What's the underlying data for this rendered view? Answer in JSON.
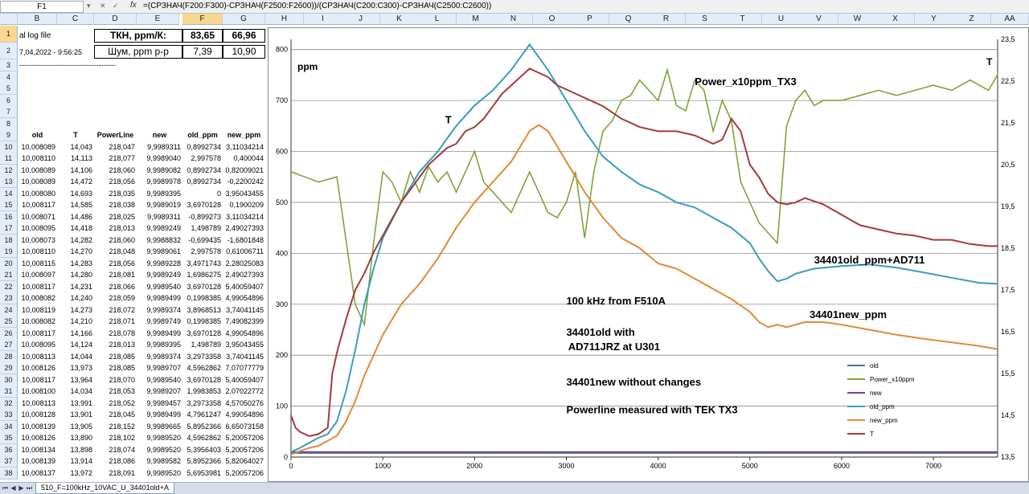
{
  "formula_bar": {
    "name_box": "F1",
    "fx": "fx",
    "formula": "=(СРЗНАЧ(F200:F300)-СРЗНАЧ(F2500:F2600))/(СРЗНАЧ(C200:C300)-СРЗНАЧ(C2500:C2600))"
  },
  "columns": [
    "B",
    "C",
    "D",
    "E",
    "F",
    "G",
    "H",
    "I",
    "J",
    "K",
    "L",
    "M",
    "N",
    "O",
    "P",
    "Q",
    "R",
    "S",
    "T",
    "U",
    "V",
    "W",
    "X",
    "Y",
    "Z",
    "AA"
  ],
  "rows": [
    1,
    2,
    3,
    4,
    5,
    6,
    7,
    8,
    9,
    10,
    11,
    12,
    13,
    14,
    15,
    16,
    17,
    18,
    19,
    20,
    21,
    22,
    23,
    24,
    25,
    26,
    27,
    28,
    29,
    30,
    31,
    32,
    33,
    34,
    35,
    36,
    37,
    38
  ],
  "top_cells": {
    "log_label": "al log file",
    "datetime": "7,04,2022 - 9:56:25",
    "dashes": "----------------------------------------",
    "tkn_label": "ТКН, ppm/К:",
    "tkn_old": "83,65",
    "tkn_new": "66,96",
    "noise_label": "Шум, ppm p-p",
    "noise_old": "7,39",
    "noise_new": "10,90"
  },
  "table": {
    "headers": [
      "old",
      "T",
      "PowerLine",
      "new",
      "old_ppm",
      "new_ppm"
    ],
    "rows": [
      [
        "10,008089",
        "14,043",
        "218,047",
        "9,9989311",
        "0,8992734",
        "3,11034214"
      ],
      [
        "10,008110",
        "14,113",
        "218,077",
        "9,9989040",
        "2,997578",
        "0,400044"
      ],
      [
        "10,008089",
        "14,106",
        "218,060",
        "9,9989082",
        "0,8992734",
        "0,82009021"
      ],
      [
        "10,008089",
        "14,472",
        "218,056",
        "9,9989978",
        "0,8992734",
        "-0,2200242"
      ],
      [
        "10,008080",
        "14,693",
        "218,035",
        "9,9989395",
        "0",
        "3,95043455"
      ],
      [
        "10,008117",
        "14,585",
        "218,038",
        "9,9989019",
        "3,6970128",
        "0,1900209"
      ],
      [
        "10,008071",
        "14,486",
        "218,025",
        "9,9989311",
        "-0,899273",
        "3,11034214"
      ],
      [
        "10,008095",
        "14,418",
        "218,013",
        "9,9989249",
        "1,498789",
        "2,49027393"
      ],
      [
        "10,008073",
        "14,282",
        "218,060",
        "9,9988832",
        "-0,699435",
        "-1,6801848"
      ],
      [
        "10,008110",
        "14,270",
        "218,048",
        "9,9989061",
        "2,997578",
        "0,61006711"
      ],
      [
        "10,008115",
        "14,283",
        "218,056",
        "9,9989228",
        "3,4971743",
        "2,28025083"
      ],
      [
        "10,008097",
        "14,280",
        "218,081",
        "9,9989249",
        "1,6986275",
        "2,49027393"
      ],
      [
        "10,008117",
        "14,231",
        "218,066",
        "9,9989540",
        "3,6970128",
        "5,40059407"
      ],
      [
        "10,008082",
        "14,240",
        "218,059",
        "9,9989499",
        "0,1998385",
        "4,99054896"
      ],
      [
        "10,008119",
        "14,273",
        "218,072",
        "9,9989374",
        "3,8968513",
        "3,74041145"
      ],
      [
        "10,008082",
        "14,210",
        "218,071",
        "9,9989749",
        "0,1998385",
        "7,49082399"
      ],
      [
        "10,008117",
        "14,166",
        "218,078",
        "9,9989499",
        "3,6970128",
        "4,99054896"
      ],
      [
        "10,008095",
        "14,124",
        "218,013",
        "9,9989395",
        "1,498789",
        "3,95043455"
      ],
      [
        "10,008113",
        "14,044",
        "218,085",
        "9,9989374",
        "3,2973358",
        "3,74041145"
      ],
      [
        "10,008126",
        "13,973",
        "218,085",
        "9,9989707",
        "4,5962862",
        "7,07077779"
      ],
      [
        "10,008117",
        "13,964",
        "218,070",
        "9,9989540",
        "3,6970128",
        "5,40059407"
      ],
      [
        "10,008100",
        "14,034",
        "218,053",
        "9,9989207",
        "1,9983853",
        "2,07022772"
      ],
      [
        "10,008113",
        "13,991",
        "218,052",
        "9,9989457",
        "3,2973358",
        "4,57050276"
      ],
      [
        "10,008128",
        "13,901",
        "218,045",
        "9,9989499",
        "4,7961247",
        "4,99054896"
      ],
      [
        "10,008139",
        "13,905",
        "218,152",
        "9,9989665",
        "5,8952366",
        "6,65073158"
      ],
      [
        "10,008126",
        "13,890",
        "218,102",
        "9,9989520",
        "4,5962862",
        "5,20057206"
      ],
      [
        "10,008134",
        "13,898",
        "218,074",
        "9,9989520",
        "5,3956403",
        "5,20057206"
      ],
      [
        "10,008139",
        "13,914",
        "218,086",
        "9,9989582",
        "5,8952366",
        "5,82064027"
      ],
      [
        "10,008137",
        "13,972",
        "218,091",
        "9,9989520",
        "5,6953981",
        "5,20057206"
      ]
    ],
    "partial_row": [
      "10,008113",
      "14,013",
      "218,086",
      "9,9989374",
      "3,2973358",
      "6,03066337"
    ]
  },
  "chart_data": {
    "type": "line",
    "x_range": [
      0,
      7700
    ],
    "y_left_range": [
      0,
      820
    ],
    "y_right_range": [
      13.5,
      23.5
    ],
    "x_ticks": [
      0,
      1000,
      2000,
      3000,
      4000,
      5000,
      6000,
      7000
    ],
    "x_tick_labels": [
      "0",
      "1000",
      "2000",
      "3000",
      "4000",
      "5000",
      "6000",
      "7000"
    ],
    "y_left_ticks": [
      0,
      100,
      200,
      300,
      400,
      500,
      600,
      700,
      800
    ],
    "y_left_tick_labels": [
      "0",
      "100",
      "200",
      "300",
      "400",
      "500",
      "600",
      "700",
      "800"
    ],
    "y_right_ticks": [
      13.5,
      14.5,
      15.5,
      16.5,
      17.5,
      18.5,
      19.5,
      20.5,
      21.5,
      22.5,
      23.5
    ],
    "y_right_tick_labels": [
      "13,5",
      "14,5",
      "15,5",
      "16,5",
      "17,5",
      "18,5",
      "19,5",
      "20,5",
      "21,5",
      "22,5",
      "23,5"
    ],
    "ylabel": "ppm",
    "y2label": "T",
    "grid": true,
    "legend_placement": "right",
    "series": [
      {
        "name": "old",
        "axis": "left",
        "color": "#4a6fa5",
        "x": [
          0,
          7700
        ],
        "y": [
          8,
          8
        ]
      },
      {
        "name": "Power_x10ppm",
        "axis": "left",
        "color": "#7fa33a",
        "x": [
          0,
          300,
          500,
          700,
          800,
          900,
          1000,
          1100,
          1200,
          1300,
          1400,
          1500,
          1600,
          1700,
          1800,
          1900,
          2000,
          2100,
          2200,
          2300,
          2400,
          2500,
          2600,
          2700,
          2800,
          2900,
          3000,
          3100,
          3200,
          3300,
          3400,
          3500,
          3600,
          3700,
          3800,
          3900,
          4000,
          4100,
          4200,
          4300,
          4400,
          4500,
          4600,
          4700,
          4800,
          4900,
          5000,
          5100,
          5200,
          5300,
          5400,
          5500,
          5600,
          5700,
          5800,
          6000,
          6200,
          6400,
          6600,
          6800,
          7000,
          7200,
          7400,
          7600,
          7700
        ],
        "y": [
          560,
          540,
          550,
          300,
          260,
          420,
          560,
          540,
          500,
          560,
          520,
          570,
          540,
          560,
          520,
          560,
          600,
          540,
          520,
          500,
          480,
          520,
          560,
          520,
          480,
          470,
          500,
          560,
          430,
          560,
          640,
          660,
          700,
          710,
          740,
          720,
          700,
          760,
          690,
          680,
          740,
          720,
          640,
          700,
          660,
          540,
          500,
          460,
          440,
          420,
          650,
          700,
          720,
          690,
          700,
          700,
          710,
          720,
          710,
          720,
          730,
          720,
          740,
          720,
          750
        ]
      },
      {
        "name": "new",
        "axis": "left",
        "color": "#6a4b8f",
        "x": [
          0,
          7700
        ],
        "y": [
          10,
          10
        ]
      },
      {
        "name": "old_ppm",
        "axis": "left",
        "color": "#3a9bc0",
        "x": [
          0,
          100,
          200,
          300,
          400,
          500,
          600,
          700,
          800,
          900,
          1000,
          1200,
          1400,
          1600,
          1800,
          2000,
          2200,
          2400,
          2600,
          2800,
          3000,
          3200,
          3400,
          3600,
          3800,
          4000,
          4200,
          4400,
          4600,
          4800,
          5000,
          5100,
          5200,
          5300,
          5400,
          5500,
          5700,
          6000,
          6300,
          6600,
          6900,
          7200,
          7500,
          7700
        ],
        "y": [
          10,
          18,
          28,
          38,
          45,
          70,
          130,
          210,
          300,
          370,
          430,
          500,
          560,
          600,
          650,
          690,
          720,
          760,
          810,
          760,
          700,
          640,
          590,
          560,
          535,
          520,
          500,
          490,
          470,
          450,
          420,
          390,
          365,
          345,
          350,
          360,
          370,
          375,
          378,
          372,
          362,
          352,
          342,
          340
        ]
      },
      {
        "name": "new_ppm",
        "axis": "left",
        "color": "#e08a38",
        "x": [
          0,
          100,
          200,
          300,
          400,
          500,
          600,
          700,
          800,
          900,
          1000,
          1200,
          1400,
          1600,
          1800,
          2000,
          2200,
          2400,
          2600,
          2700,
          2800,
          2900,
          3000,
          3100,
          3200,
          3400,
          3600,
          3800,
          4000,
          4200,
          4400,
          4600,
          4800,
          5000,
          5100,
          5200,
          5300,
          5400,
          5500,
          5600,
          5800,
          6000,
          6300,
          6600,
          6900,
          7200,
          7500,
          7700
        ],
        "y": [
          5,
          12,
          18,
          22,
          32,
          42,
          70,
          110,
          160,
          200,
          240,
          300,
          340,
          390,
          450,
          500,
          540,
          580,
          640,
          652,
          640,
          610,
          580,
          550,
          520,
          470,
          430,
          410,
          380,
          370,
          350,
          330,
          310,
          285,
          265,
          255,
          260,
          255,
          260,
          265,
          265,
          260,
          250,
          240,
          232,
          225,
          218,
          212
        ]
      },
      {
        "name": "T",
        "axis": "right",
        "color": "#a33a3a",
        "x": [
          0,
          50,
          100,
          200,
          300,
          400,
          450,
          500,
          600,
          700,
          800,
          900,
          1000,
          1100,
          1200,
          1300,
          1400,
          1500,
          1600,
          1700,
          1800,
          1900,
          2000,
          2100,
          2200,
          2300,
          2400,
          2500,
          2600,
          2700,
          2800,
          2900,
          3000,
          3100,
          3200,
          3300,
          3400,
          3600,
          3800,
          4000,
          4200,
          4400,
          4600,
          4700,
          4800,
          4900,
          5000,
          5100,
          5200,
          5300,
          5400,
          5500,
          5600,
          5800,
          6000,
          6200,
          6400,
          6600,
          6800,
          7000,
          7200,
          7400,
          7600,
          7700
        ],
        "y": [
          14.5,
          14.2,
          14.1,
          14.0,
          14.05,
          14.2,
          15.5,
          16.0,
          16.8,
          17.5,
          17.9,
          18.4,
          18.8,
          19.2,
          19.6,
          19.9,
          20.2,
          20.5,
          20.7,
          20.9,
          21.0,
          21.3,
          21.4,
          21.6,
          21.9,
          22.2,
          22.4,
          22.6,
          22.8,
          22.7,
          22.6,
          22.4,
          22.3,
          22.2,
          22.1,
          22.0,
          21.9,
          21.6,
          21.4,
          21.3,
          21.3,
          21.2,
          21.0,
          21.1,
          21.6,
          21.3,
          20.5,
          20.2,
          19.8,
          19.6,
          19.55,
          19.6,
          19.7,
          19.55,
          19.3,
          19.05,
          18.95,
          18.85,
          18.8,
          18.7,
          18.7,
          18.6,
          18.55,
          18.55
        ]
      }
    ],
    "annotations": [
      {
        "text": "Power_x10ppm_TX3",
        "x": 4400,
        "y": 730,
        "bold": true
      },
      {
        "text": "T",
        "x": 1680,
        "y": 655,
        "bold": true
      },
      {
        "text": "34401old_ppm+AD711",
        "x": 5700,
        "y": 380,
        "bold": true
      },
      {
        "text": "100 kHz from F510A",
        "x": 3000,
        "y": 300,
        "bold": true
      },
      {
        "text": "34401new_ppm",
        "x": 5650,
        "y": 273,
        "bold": true
      },
      {
        "text": "34401old with",
        "x": 3000,
        "y": 238,
        "bold": true
      },
      {
        "text": "AD711JRZ at U301",
        "x": 3020,
        "y": 210,
        "bold": true
      },
      {
        "text": "34401new without changes",
        "x": 3000,
        "y": 140,
        "bold": true
      },
      {
        "text": "Powerline measured with TEK TX3",
        "x": 3000,
        "y": 86,
        "bold": true
      }
    ]
  },
  "sheet_tabs": {
    "active": "510_F=100kHz_10VAC_U_34401old+A"
  }
}
